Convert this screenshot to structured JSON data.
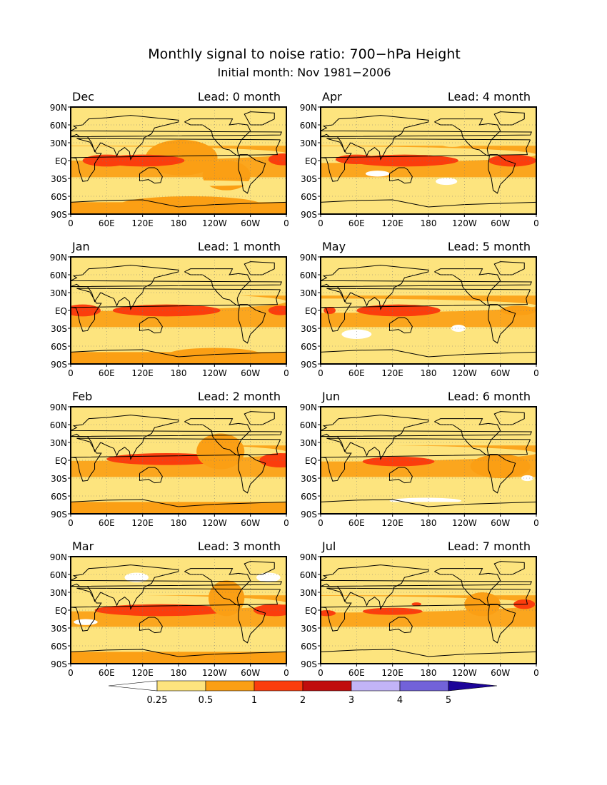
{
  "title": "Monthly signal to noise ratio: 700−hPa Height",
  "subtitle": "Initial month: Nov 1981−2006",
  "lat_labels": [
    "90N",
    "60N",
    "30N",
    "EQ",
    "30S",
    "60S",
    "90S"
  ],
  "lon_labels": [
    "0",
    "60E",
    "120E",
    "180",
    "120W",
    "60W",
    "0"
  ],
  "panels": [
    {
      "month": "Dec",
      "lead": "Lead: 0 month"
    },
    {
      "month": "Apr",
      "lead": "Lead: 4 month"
    },
    {
      "month": "Jan",
      "lead": "Lead: 1 month"
    },
    {
      "month": "May",
      "lead": "Lead: 5 month"
    },
    {
      "month": "Feb",
      "lead": "Lead: 2 month"
    },
    {
      "month": "Jun",
      "lead": "Lead: 6 month"
    },
    {
      "month": "Mar",
      "lead": "Lead: 3 month"
    },
    {
      "month": "Jul",
      "lead": "Lead: 7 month"
    }
  ],
  "colorbar": {
    "labels": [
      "0.25",
      "0.5",
      "1",
      "2",
      "3",
      "4",
      "5"
    ],
    "colors": [
      "#ffffff",
      "#fde47e",
      "#fb9f14",
      "#fb3d0d",
      "#c00d0d",
      "#c2b4f7",
      "#7262d9",
      "#1c0499"
    ]
  }
}
